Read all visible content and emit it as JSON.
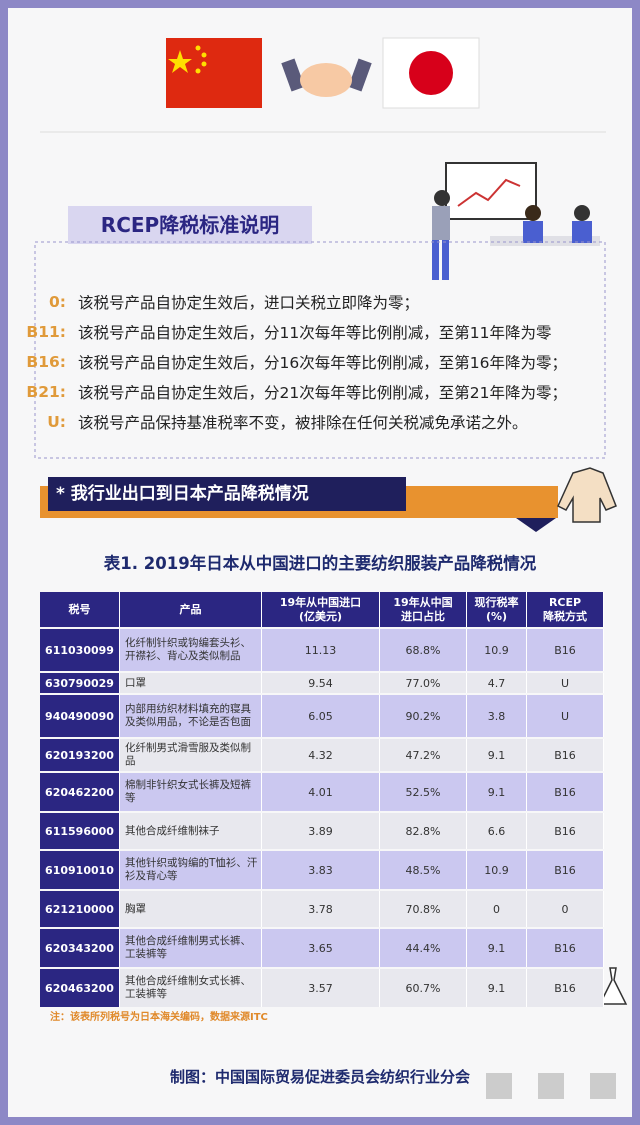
{
  "header": {
    "title": "RCEP降税标准说明"
  },
  "rules": [
    {
      "code": "0:",
      "text": "该税号产品自协定生效后，进口关税立即降为零；"
    },
    {
      "code": "B11:",
      "text": "该税号产品自协定生效后，分11次每年等比例削减，至第11年降为零"
    },
    {
      "code": "B16:",
      "text": "该税号产品自协定生效后，分16次每年等比例削减，至第16年降为零；"
    },
    {
      "code": "B21:",
      "text": "该税号产品自协定生效后，分21次每年等比例削减，至第21年降为零；"
    },
    {
      "code": "U:",
      "text": "该税号产品保持基准税率不变，被排除在任何关税减免承诺之外。"
    }
  ],
  "banner": "* 我行业出口到日本产品降税情况",
  "table": {
    "title": "表1. 2019年日本从中国进口的主要纺织服装产品降税情况",
    "columns": [
      "税号",
      "产品",
      "19年从中国进口\n(亿美元)",
      "19年从中国\n进口占比",
      "现行税率\n(%)",
      "RCEP\n降税方式"
    ],
    "rows": [
      [
        "611030099",
        "化纤制针织或钩编套头衫、开襟衫、背心及类似制品",
        "11.13",
        "68.8%",
        "10.9",
        "B16"
      ],
      [
        "630790029",
        "口罩",
        "9.54",
        "77.0%",
        "4.7",
        "U"
      ],
      [
        "940490090",
        "内部用纺织材料填充的寝具及类似用品，不论是否包面",
        "6.05",
        "90.2%",
        "3.8",
        "U"
      ],
      [
        "620193200",
        "化纤制男式滑雪服及类似制品",
        "4.32",
        "47.2%",
        "9.1",
        "B16"
      ],
      [
        "620462200",
        "棉制非针织女式长裤及短裤等",
        "4.01",
        "52.5%",
        "9.1",
        "B16"
      ],
      [
        "611596000",
        "其他合成纤维制袜子",
        "3.89",
        "82.8%",
        "6.6",
        "B16"
      ],
      [
        "610910010",
        "其他针织或钩编的T恤衫、汗衫及背心等",
        "3.83",
        "48.5%",
        "10.9",
        "B16"
      ],
      [
        "621210000",
        "胸罩",
        "3.78",
        "70.8%",
        "0",
        "0"
      ],
      [
        "620343200",
        "其他合成纤维制男式长裤、工装裤等",
        "3.65",
        "44.4%",
        "9.1",
        "B16"
      ],
      [
        "620463200",
        "其他合成纤维制女式长裤、工装裤等",
        "3.57",
        "60.7%",
        "9.1",
        "B16"
      ]
    ]
  },
  "note": "注：该表所列税号为日本海关编码，数据来源ITC",
  "credit": "制图：中国国际贸易促进委员会纺织行业分会"
}
